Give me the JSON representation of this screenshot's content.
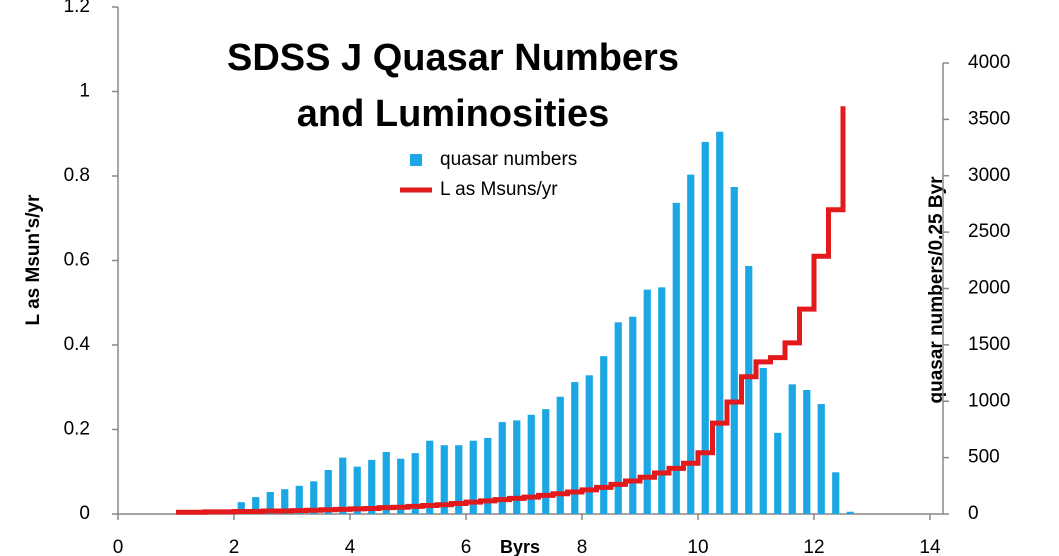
{
  "chart_data": {
    "type": "bar-line",
    "title": "SDSS J Quasar Numbers and Luminosities",
    "x_label": "Byrs",
    "y_label": "L as Msun's/yr",
    "y2_label": "quasar numbers/0.25 Byr",
    "xlim": [
      0,
      14
    ],
    "xticks": [
      0,
      2,
      4,
      6,
      8,
      10,
      12,
      14
    ],
    "ylim": [
      0,
      1.2
    ],
    "yticks": [
      0,
      0.2,
      0.4,
      0.6,
      0.8,
      1,
      1.2
    ],
    "y2lim": [
      0,
      4000
    ],
    "y2ticks": [
      0,
      500,
      1000,
      1500,
      2000,
      2500,
      3000,
      3500,
      4000
    ],
    "grid": false,
    "legend": "top-center",
    "series": [
      {
        "name": "quasar numbers",
        "type": "bar",
        "axis": "y2",
        "color": "#1aa7e4",
        "x": [
          1.875,
          2.125,
          2.375,
          2.625,
          2.875,
          3.125,
          3.375,
          3.625,
          3.875,
          4.125,
          4.375,
          4.625,
          4.875,
          5.125,
          5.375,
          5.625,
          5.875,
          6.125,
          6.375,
          6.625,
          6.875,
          7.125,
          7.375,
          7.625,
          7.875,
          8.125,
          8.375,
          8.625,
          8.875,
          9.125,
          9.375,
          9.625,
          9.875,
          10.125,
          10.375,
          10.625,
          10.875,
          11.125,
          11.375,
          11.625,
          11.875,
          12.125,
          12.375,
          12.625
        ],
        "values": [
          35,
          105,
          150,
          195,
          220,
          250,
          290,
          390,
          500,
          420,
          480,
          550,
          490,
          540,
          650,
          610,
          610,
          650,
          675,
          815,
          830,
          880,
          930,
          1040,
          1170,
          1230,
          1400,
          1700,
          1750,
          1990,
          2010,
          2760,
          3010,
          3300,
          3390,
          2900,
          2200,
          1295,
          720,
          1150,
          1100,
          975,
          370,
          20
        ]
      },
      {
        "name": "L as Msuns/yr",
        "type": "step",
        "axis": "y",
        "color": "#e31a1c",
        "x": [
          1,
          1.25,
          1.5,
          1.75,
          2,
          2.25,
          2.5,
          2.75,
          3,
          3.25,
          3.5,
          3.75,
          4,
          4.25,
          4.5,
          4.75,
          5,
          5.25,
          5.5,
          5.75,
          6,
          6.25,
          6.5,
          6.75,
          7,
          7.25,
          7.5,
          7.75,
          8,
          8.25,
          8.5,
          8.75,
          9,
          9.25,
          9.5,
          9.75,
          10,
          10.25,
          10.5,
          10.75,
          11,
          11.25,
          11.5,
          11.75,
          12,
          12.25,
          12.5
        ],
        "values": [
          0.004,
          0.004,
          0.005,
          0.005,
          0.006,
          0.006,
          0.007,
          0.007,
          0.008,
          0.009,
          0.01,
          0.011,
          0.012,
          0.013,
          0.015,
          0.016,
          0.018,
          0.02,
          0.022,
          0.025,
          0.028,
          0.031,
          0.034,
          0.037,
          0.04,
          0.044,
          0.048,
          0.052,
          0.057,
          0.063,
          0.07,
          0.078,
          0.087,
          0.097,
          0.108,
          0.12,
          0.145,
          0.215,
          0.265,
          0.325,
          0.36,
          0.37,
          0.405,
          0.485,
          0.61,
          0.72,
          0.965
        ]
      }
    ]
  }
}
